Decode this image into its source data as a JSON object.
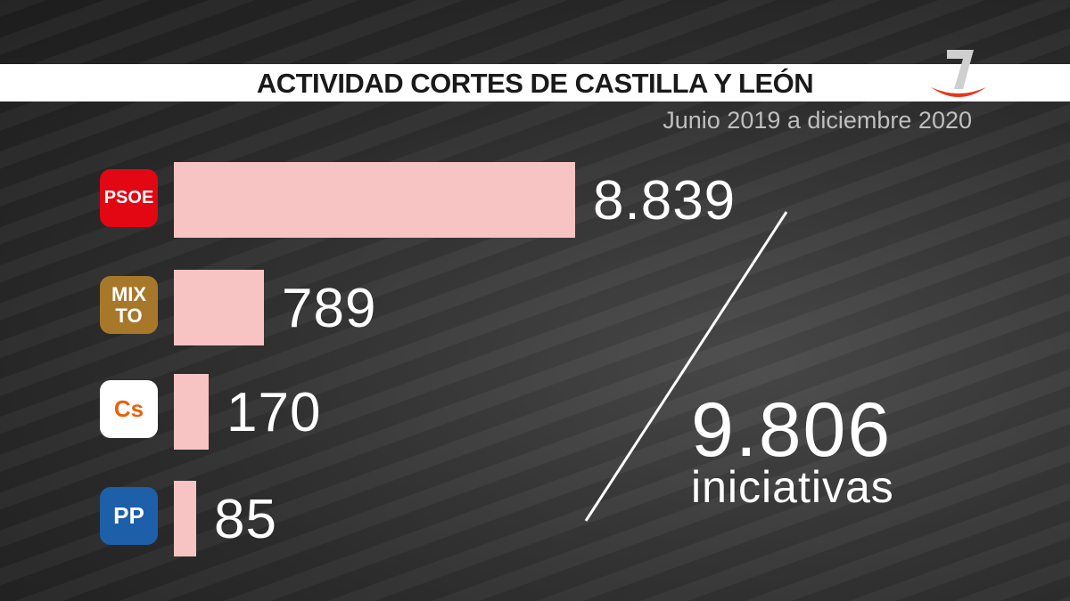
{
  "header": {
    "title": "ACTIVIDAD CORTES DE CASTILLA Y LEÓN",
    "subtitle": "Junio 2019 a diciembre 2020",
    "channel_logo": "7"
  },
  "colors": {
    "bar": "#f7c3c3",
    "psoe": "#e30613",
    "mixto": "#a8782a",
    "cs": "#eb6109",
    "pp": "#1d5fa8"
  },
  "chart_data": {
    "type": "bar",
    "orientation": "horizontal",
    "title": "ACTIVIDAD CORTES DE CASTILLA Y LEÓN",
    "subtitle": "Junio 2019 a diciembre 2020",
    "categories": [
      "PSOE",
      "MIXTO",
      "Cs",
      "PP"
    ],
    "values": [
      8839,
      789,
      170,
      85
    ],
    "labels": [
      "8.839",
      "789",
      "170",
      "85"
    ],
    "logo_text": [
      "PSOE",
      "MIX TO",
      "Cs",
      "PP"
    ],
    "total": {
      "value": 9806,
      "label": "9.806",
      "unit": "iniciativas"
    }
  }
}
